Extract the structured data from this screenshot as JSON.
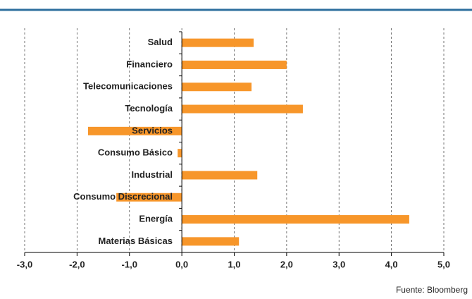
{
  "chart_data": {
    "type": "bar",
    "orientation": "horizontal",
    "categories": [
      "Salud",
      "Financiero",
      "Telecomunicaciones",
      "Tecnología",
      "Servicios",
      "Consumo Básico",
      "Industrial",
      "Consumo Discrecional",
      "Energía",
      "Materias Básicas"
    ],
    "values": [
      1.37,
      2.0,
      1.33,
      2.31,
      -1.79,
      -0.08,
      1.44,
      -1.25,
      4.34,
      1.09
    ],
    "color": "#f7962a",
    "xlim": [
      -3,
      5
    ],
    "xticks": [
      {
        "value": -3,
        "label": "-3,0"
      },
      {
        "value": -2,
        "label": "-2,0"
      },
      {
        "value": -1,
        "label": "-1,0"
      },
      {
        "value": 0,
        "label": "0,0"
      },
      {
        "value": 1,
        "label": "1,0"
      },
      {
        "value": 2,
        "label": "2,0"
      },
      {
        "value": 3,
        "label": "3,0"
      },
      {
        "value": 4,
        "label": "4,0"
      },
      {
        "value": 5,
        "label": "5,0"
      }
    ],
    "grid": true,
    "source": "Fuente: Bloomberg"
  }
}
